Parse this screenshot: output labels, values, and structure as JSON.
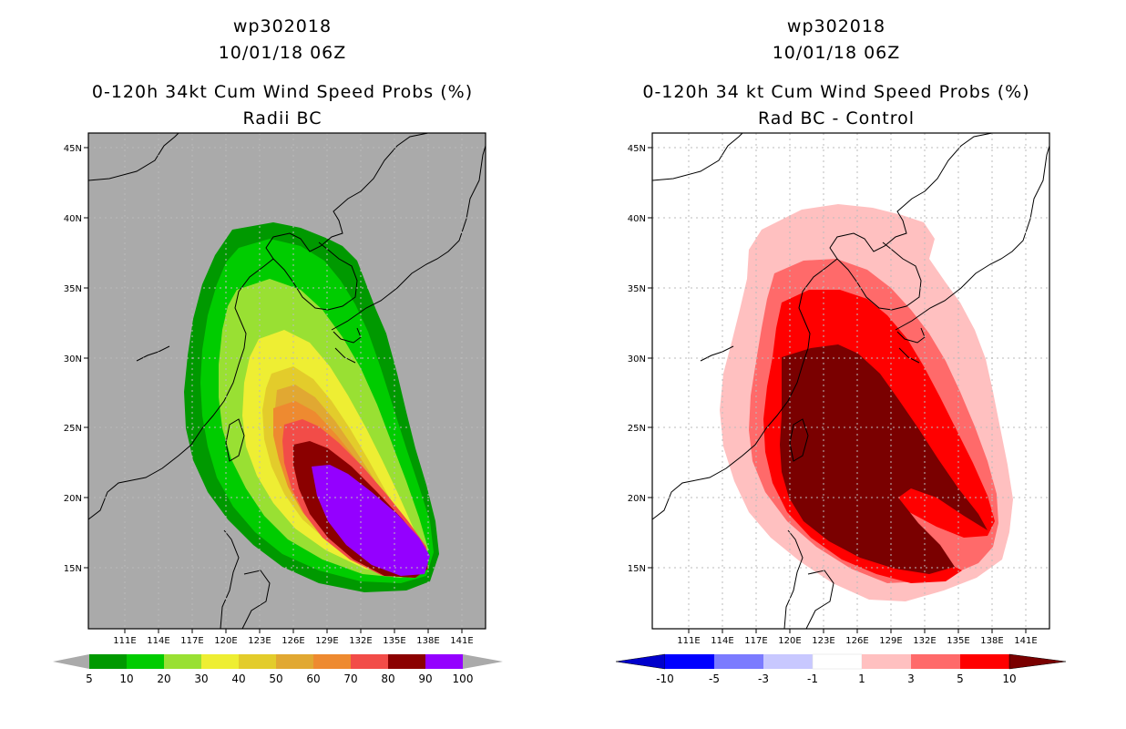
{
  "panels": {
    "left": {
      "storm_id": "wp302018",
      "datetime": "10/01/18 06Z",
      "product": "0-120h 34kt Cum Wind Speed Probs (%)",
      "subtitle": "Radii BC",
      "colorbar": {
        "labels": [
          "5",
          "10",
          "20",
          "30",
          "40",
          "50",
          "60",
          "70",
          "80",
          "90",
          "100"
        ],
        "colors": [
          "#009900",
          "#00cc00",
          "#99e033",
          "#eeee33",
          "#e3cc2b",
          "#e1a832",
          "#ee8a30",
          "#f24c48",
          "#8b0000",
          "#9400ff"
        ]
      }
    },
    "right": {
      "storm_id": "wp302018",
      "datetime": "10/01/18 06Z",
      "product": "0-120h 34 kt Cum Wind Speed Probs (%)",
      "subtitle": "Rad BC - Control",
      "colorbar": {
        "labels": [
          "-10",
          "-5",
          "-3",
          "-1",
          "1",
          "3",
          "5",
          "10"
        ],
        "colors": [
          "#0000cc",
          "#0000ff",
          "#7b7bff",
          "#c8c8ff",
          "#ffffff",
          "#ffc0c0",
          "#ff6a6a",
          "#ff0000",
          "#7a0000"
        ]
      }
    }
  },
  "map": {
    "lat_labels": [
      "45N",
      "40N",
      "35N",
      "30N",
      "25N",
      "20N",
      "15N"
    ],
    "lon_labels": [
      "111E",
      "114E",
      "117E",
      "120E",
      "123E",
      "126E",
      "129E",
      "132E",
      "135E",
      "138E",
      "141E"
    ],
    "land_color": "#aaaaaa",
    "grid_color": "#bbbbbb"
  }
}
